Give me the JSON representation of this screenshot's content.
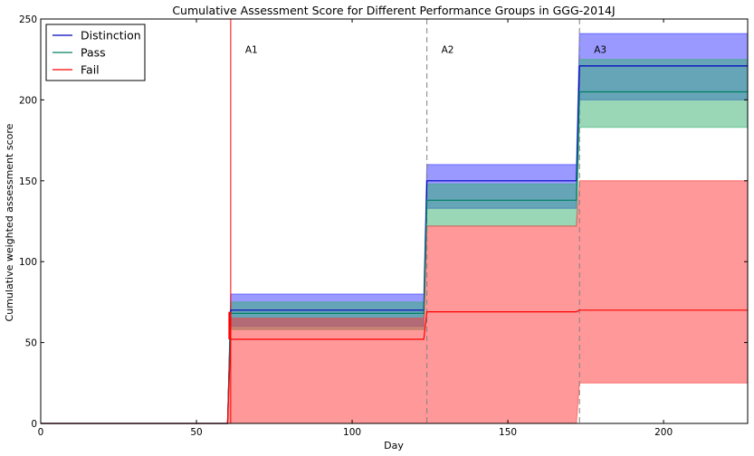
{
  "chart_data": {
    "type": "area",
    "title": "Cumulative Assessment Score for Different Performance Groups in GGG-2014J",
    "xlabel": "Day",
    "ylabel": "Cumulative weighted assessment score",
    "xlim": [
      0,
      227
    ],
    "ylim": [
      0,
      250
    ],
    "x_ticks": [
      0,
      50,
      100,
      150,
      200
    ],
    "y_ticks": [
      0,
      50,
      100,
      150,
      200,
      250
    ],
    "grid": false,
    "legend_position": "top-left",
    "legend": [
      "Distinction",
      "Pass",
      "Fail"
    ],
    "assessments": [
      {
        "label": "A1",
        "day": 61
      },
      {
        "label": "A2",
        "day": 124
      },
      {
        "label": "A3",
        "day": 173
      }
    ],
    "series": [
      {
        "name": "Distinction",
        "color": "#0000bf",
        "fill_color": "#3333ff",
        "x": [
          0,
          60,
          61,
          123,
          124,
          172,
          173,
          227
        ],
        "mean": [
          0,
          0,
          70,
          70,
          150,
          150,
          221,
          221
        ],
        "lower": [
          0,
          0,
          60,
          60,
          133,
          133,
          200,
          200
        ],
        "upper": [
          0,
          0,
          80,
          80,
          160,
          160,
          241,
          241
        ]
      },
      {
        "name": "Pass",
        "color": "#008060",
        "fill_color": "#33b070",
        "x": [
          0,
          60,
          61,
          123,
          124,
          172,
          173,
          227
        ],
        "mean": [
          0,
          0,
          68,
          68,
          138,
          138,
          205,
          205
        ],
        "lower": [
          0,
          0,
          58,
          58,
          122,
          122,
          183,
          183
        ],
        "upper": [
          0,
          0,
          75,
          75,
          148,
          148,
          225,
          225
        ]
      },
      {
        "name": "Fail",
        "color": "#ff0000",
        "fill_color": "#ff3333",
        "x": [
          0,
          60,
          61,
          123,
          124,
          172,
          173,
          227
        ],
        "mean": [
          0,
          0,
          52,
          52,
          69,
          69,
          70,
          70
        ],
        "lower": [
          0,
          0,
          0,
          0,
          0,
          0,
          25,
          25
        ],
        "upper": [
          0,
          0,
          65,
          65,
          122,
          122,
          150,
          150
        ]
      }
    ]
  }
}
